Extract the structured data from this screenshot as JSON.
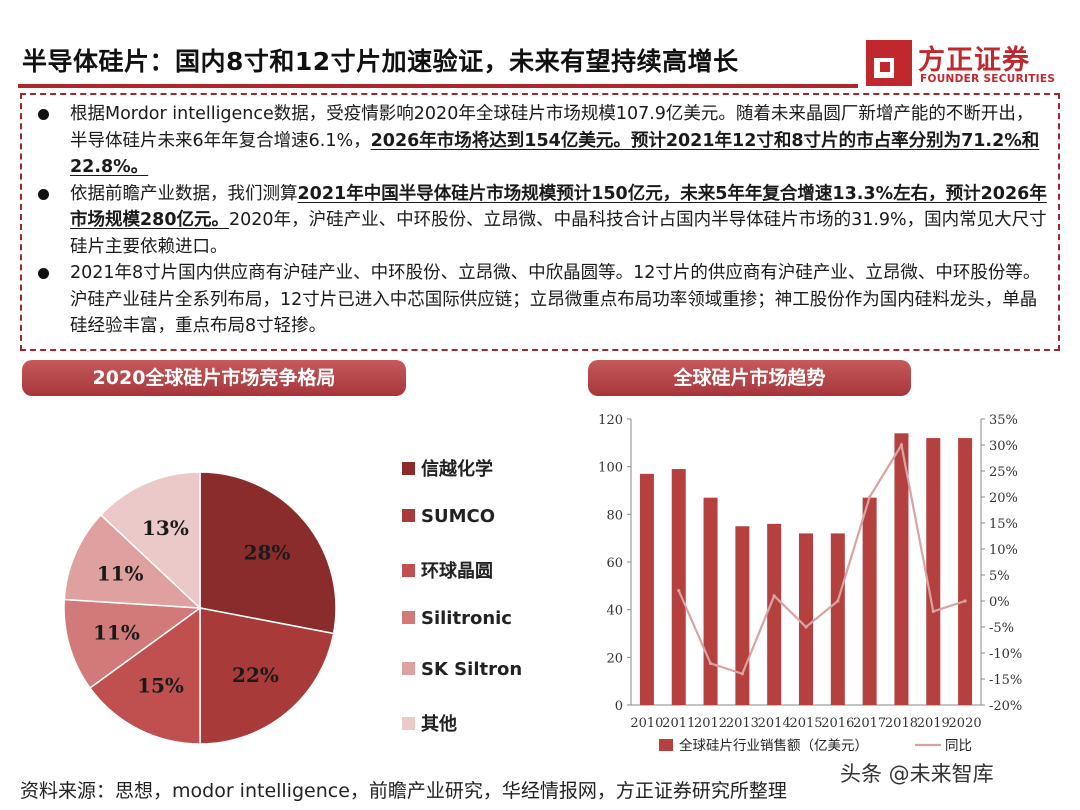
{
  "header": {
    "title": "半导体硅片：国内8寸和12寸片加速验证，未来有望持续高增长",
    "logo_cn": "方正证券",
    "logo_en": "FOUNDER SECURITIES",
    "accent": "#b1262b"
  },
  "bullets": [
    {
      "parts": [
        {
          "text": "根据Mordor intelligence数据，受疫情影响2020年全球硅片市场规模107.9亿美元。随着未来晶圆厂新增产能的不断开出，半导体硅片未来6年年复合增速6.1%，",
          "bold": false
        },
        {
          "text": "2026年市场将达到154亿美元。预计2021年12寸和8寸片的市占率分别为71.2%和22.8%。",
          "bold": true
        }
      ]
    },
    {
      "parts": [
        {
          "text": "依据前瞻产业数据，我们测算",
          "bold": false
        },
        {
          "text": "2021年中国半导体硅片市场规模预计150亿元，未来5年年复合增速13.3%左右，预计2026年市场规模280亿元。",
          "bold": true
        },
        {
          "text": "2020年，沪硅产业、中环股份、立昂微、中晶科技合计占国内半导体硅片市场的31.9%，国内常见大尺寸硅片主要依赖进口。",
          "bold": false
        }
      ]
    },
    {
      "parts": [
        {
          "text": "2021年8寸片国内供应商有沪硅产业、中环股份、立昂微、中欣晶圆等。12寸片的供应商有沪硅产业、立昂微、中环股份等。沪硅产业硅片全系列布局，12寸片已进入中芯国际供应链；立昂微重点布局功率领域重掺；神工股份作为国内硅料龙头，单晶硅经验丰富，重点布局8寸轻掺。",
          "bold": false
        }
      ]
    }
  ],
  "sections": {
    "left_title": "2020全球硅片市场竞争格局",
    "right_title": "全球硅片市场趋势"
  },
  "chart_data": [
    {
      "type": "pie",
      "title": "2020全球硅片市场竞争格局",
      "slices": [
        {
          "label": "信越化学",
          "value": 28,
          "display": "28%",
          "color": "#8b2c2c"
        },
        {
          "label": "SUMCO",
          "value": 22,
          "display": "22%",
          "color": "#a93a3a"
        },
        {
          "label": "环球晶圆",
          "value": 15,
          "display": "15%",
          "color": "#c05050"
        },
        {
          "label": "Silitronic",
          "value": 11,
          "display": "11%",
          "color": "#d27a7a"
        },
        {
          "label": "SK Siltron",
          "value": 11,
          "display": "11%",
          "color": "#dfa0a0"
        },
        {
          "label": "其他",
          "value": 13,
          "display": "13%",
          "color": "#ecc9c9"
        }
      ]
    },
    {
      "type": "bar",
      "title": "全球硅片市场趋势",
      "categories": [
        "2010",
        "2011",
        "2012",
        "2013",
        "2014",
        "2015",
        "2016",
        "2017",
        "2018",
        "2019",
        "2020"
      ],
      "series": [
        {
          "name": "全球硅片行业销售额（亿美元）",
          "type": "bar",
          "axis": "left",
          "color": "#b5413f",
          "values": [
            97,
            99,
            87,
            75,
            76,
            72,
            72,
            87,
            114,
            112,
            112
          ]
        },
        {
          "name": "同比",
          "type": "line",
          "axis": "right",
          "color": "#d9a3a3",
          "values": [
            null,
            2,
            -12,
            -14,
            1,
            -5,
            0,
            20,
            30,
            -2,
            0
          ]
        }
      ],
      "ylim": [
        0,
        120
      ],
      "yticks": [
        "0",
        "20",
        "40",
        "60",
        "80",
        "100",
        "120"
      ],
      "y2lim": [
        -20,
        35
      ],
      "y2ticks": [
        "-20%",
        "-15%",
        "-10%",
        "-5%",
        "0%",
        "5%",
        "10%",
        "15%",
        "20%",
        "25%",
        "30%",
        "35%"
      ],
      "legend_position": "bottom"
    }
  ],
  "footer": {
    "source": "资料来源：思想，modor intelligence，前瞻产业研究，华经情报网，方正证券研究所整理",
    "watermark": "头条 @未来智库"
  }
}
